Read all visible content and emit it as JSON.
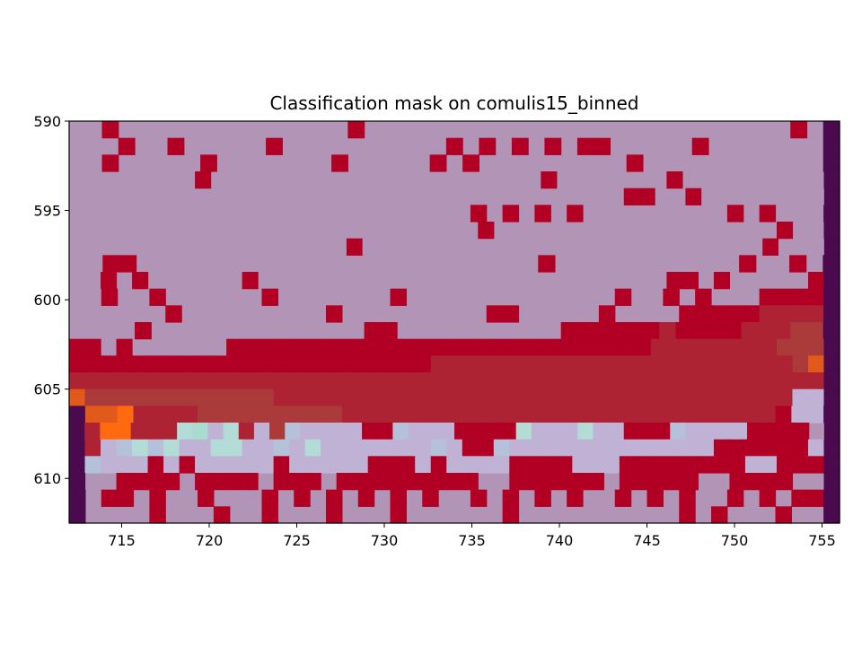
{
  "chart_data": {
    "type": "heatmap",
    "title": "Classification mask on comulis15_binned",
    "xlabel": "",
    "ylabel": "",
    "x_range": [
      712,
      756
    ],
    "y_range": [
      590,
      612.5
    ],
    "y_inverted": true,
    "x_ticks": [
      "715",
      "720",
      "725",
      "730",
      "735",
      "740",
      "745",
      "750",
      "755"
    ],
    "y_ticks": [
      "590",
      "595",
      "600",
      "605",
      "610"
    ],
    "grid": false,
    "legend": "none",
    "colors": {
      "background": "#b295b6",
      "mask_red": "#b20025",
      "dark_edge": "#4c0a4e",
      "mid_red": "#ad2333",
      "brown_red": "#aa3b3a",
      "orange": "#e15a1c",
      "bright_orange": "#ff6a10",
      "light_lavender": "#bfb2d4",
      "pale_blue": "#b5c1d8",
      "light_cyan": "#b4dcd6",
      "mint": "#a8dcce"
    },
    "legend_codes": {
      ".": "background",
      "r": "mask_red",
      "d": "dark_edge",
      "m": "mid_red",
      "b": "brown_red",
      "o": "orange",
      "O": "bright_orange",
      "l": "light_lavender",
      "p": "pale_blue",
      "c": "light_cyan",
      "g": "mint"
    },
    "grid_rows": [
      "..r..............r..........................r.d",
      "...r..r.....r..........r.r.r.r.rr.....r.......d",
      "..r.....r.......r.....r.r.........r...........d",
      "........r.....................r.......r.........d",
      "....................................rr..r........d",
      ".........................r.r.r.r.........r.r...d",
      "..........................r..................r..d",
      "..................r..........................r...d",
      "..rr........................r...........r..r.d",
      "..r.r......r..........................rr.r.....rd",
      "..r..r......r.......r.............r..r.r...rrrrd",
      "......r.........r.........rr.....r....rrrrrmmmmd",
      "....r.............rr..........rrrrrrmrrrrmmmbbd",
      "rr.r......rrrrrrrrrrrrrrrrrrrrrrrrrrrmmmmmmmmbbbd",
      "rrrrrrrrrrrrrrrrrrrrrrrmmmmmmmmmmmmmmmmmmmmmmmbod",
      "mmmmmmmmmmmmmmmmmmmmmmmmmmmmmmmmmmmmmmmmmmmmmmmmd",
      "obbbbbbbbbbbbmmmmmmmmmmmmmmmmmmmmmmmmmmmmmmmmmlld",
      "dooOmmmmbbbbbbbbbmmmmmmmmmmmmmmmmmmmmmmmmmmmrlld",
      "dmOOmmmcglcmlbpllllrrplllrrrrclllcllrrrpllllrrrr.d",
      "dmlpcpcllccllplclllllllplrrplllllllllllllrrrrrrld",
      "dplllrlrlllllrlllllrrrlrllllrrrrlllrrrrrrrrllrrrd",
      "d..rrrr.rrrr.rrr.rrrrrrrrr..rrrrrr.rrrrr..rrrr..d",
      "d.rr.r..r...r.r.r.r.r.r..r.r.r.r..r.r.r..r.r.rrd",
      "d....r...r..r...r...r......r..........r.r...r..d"
    ]
  }
}
